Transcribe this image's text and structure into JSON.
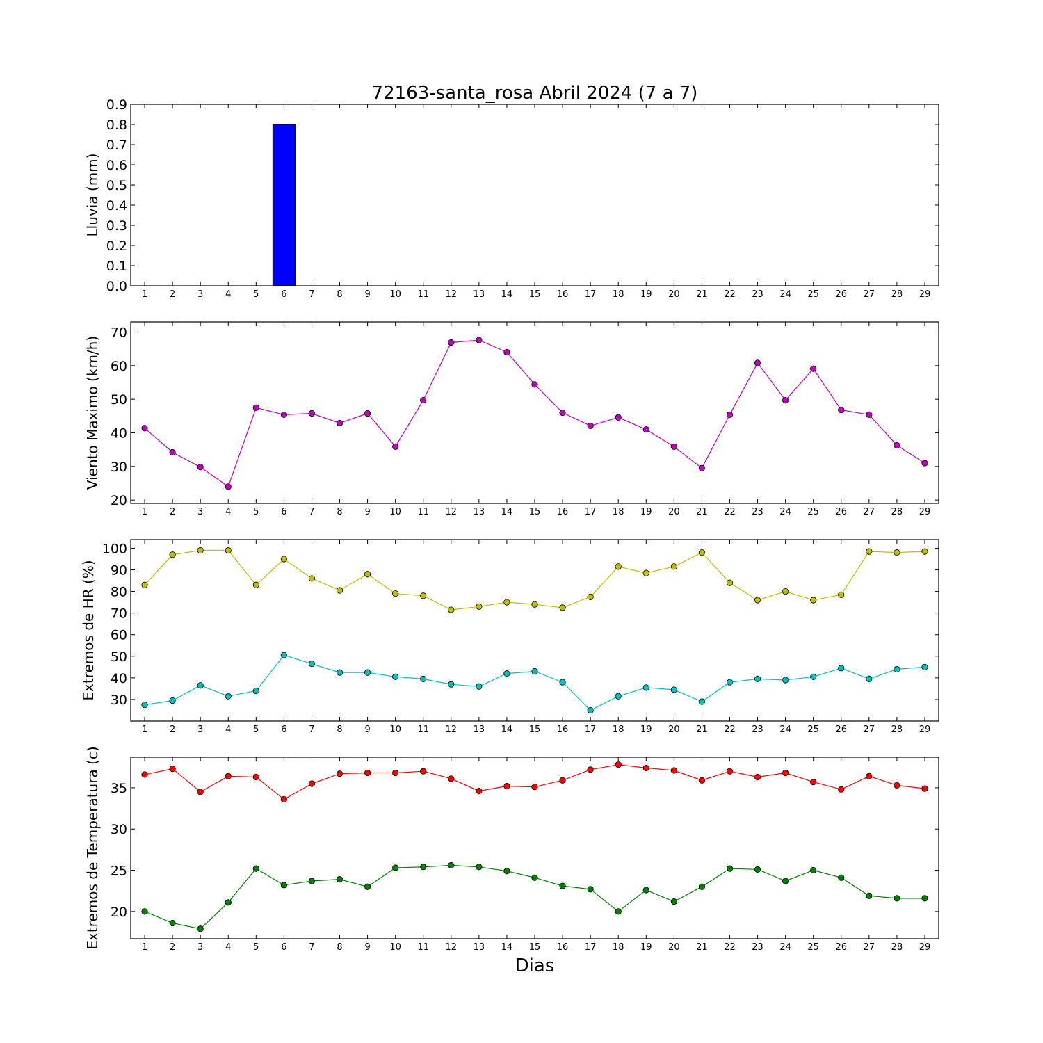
{
  "title": "72163-santa_rosa Abril 2024  (7 a 7)",
  "xlabel": "Dias",
  "chart_data": [
    {
      "type": "bar",
      "ylabel": "Lluvia (mm)",
      "x": [
        1,
        2,
        3,
        4,
        5,
        6,
        7,
        8,
        9,
        10,
        11,
        12,
        13,
        14,
        15,
        16,
        17,
        18,
        19,
        20,
        21,
        22,
        23,
        24,
        25,
        26,
        27,
        28,
        29
      ],
      "ylim": [
        0,
        0.9
      ],
      "yticks": [
        0.0,
        0.1,
        0.2,
        0.3,
        0.4,
        0.5,
        0.6,
        0.7,
        0.8,
        0.9
      ],
      "ytick_decimals": 1,
      "series": [
        {
          "color": "#0000ff",
          "values": [
            0,
            0,
            0,
            0,
            0,
            0.8,
            0,
            0,
            0,
            0,
            0,
            0,
            0,
            0,
            0,
            0,
            0,
            0,
            0,
            0,
            0,
            0,
            0,
            0,
            0,
            0,
            0,
            0,
            0
          ]
        }
      ]
    },
    {
      "type": "line",
      "ylabel": "Viento Maximo (km/h)",
      "x": [
        1,
        2,
        3,
        4,
        5,
        6,
        7,
        8,
        9,
        10,
        11,
        12,
        13,
        14,
        15,
        16,
        17,
        18,
        19,
        20,
        21,
        22,
        23,
        24,
        25,
        26,
        27,
        28,
        29
      ],
      "ylim": [
        19,
        73
      ],
      "yticks": [
        20,
        30,
        40,
        50,
        60,
        70
      ],
      "ytick_decimals": 0,
      "series": [
        {
          "color": "#bf00bf",
          "values": [
            41.4,
            34.2,
            29.8,
            24.0,
            47.5,
            45.4,
            45.8,
            42.9,
            45.8,
            35.9,
            49.7,
            66.9,
            67.6,
            64.0,
            54.4,
            46.0,
            42.1,
            44.6,
            41.0,
            35.9,
            29.5,
            45.4,
            60.8,
            49.7,
            59.1,
            46.8,
            45.4,
            36.3,
            31.0
          ]
        }
      ]
    },
    {
      "type": "line",
      "ylabel": "Extremos de HR (%)",
      "x": [
        1,
        2,
        3,
        4,
        5,
        6,
        7,
        8,
        9,
        10,
        11,
        12,
        13,
        14,
        15,
        16,
        17,
        18,
        19,
        20,
        21,
        22,
        23,
        24,
        25,
        26,
        27,
        28,
        29
      ],
      "ylim": [
        20,
        104
      ],
      "yticks": [
        30,
        40,
        50,
        60,
        70,
        80,
        90,
        100
      ],
      "ytick_decimals": 0,
      "series": [
        {
          "color": "#bfbf00",
          "values": [
            83,
            97,
            99,
            99,
            83,
            95,
            86,
            80.5,
            88,
            79,
            78,
            71.5,
            73,
            75,
            74,
            72.5,
            77.5,
            91.5,
            88.5,
            91.5,
            98,
            84,
            76,
            80,
            76,
            78.5,
            98.5,
            98,
            98.5
          ]
        },
        {
          "color": "#00bfbf",
          "values": [
            27.5,
            29.5,
            36.5,
            31.5,
            34,
            50.5,
            46.5,
            42.5,
            42.5,
            40.5,
            39.5,
            37,
            36,
            42,
            43,
            38,
            25,
            31.5,
            35.5,
            34.5,
            29,
            38,
            39.5,
            39,
            40.5,
            44.5,
            39.5,
            44,
            45
          ]
        }
      ]
    },
    {
      "type": "line",
      "ylabel": "Extremos de Temperatura (c)",
      "x": [
        1,
        2,
        3,
        4,
        5,
        6,
        7,
        8,
        9,
        10,
        11,
        12,
        13,
        14,
        15,
        16,
        17,
        18,
        19,
        20,
        21,
        22,
        23,
        24,
        25,
        26,
        27,
        28,
        29
      ],
      "ylim": [
        16.7,
        38.7
      ],
      "yticks": [
        20,
        25,
        30,
        35
      ],
      "ytick_decimals": 0,
      "series": [
        {
          "color": "#ff0000",
          "values": [
            36.6,
            37.3,
            34.5,
            36.4,
            36.3,
            33.6,
            35.5,
            36.7,
            36.8,
            36.8,
            37.0,
            36.1,
            34.6,
            35.2,
            35.1,
            35.9,
            37.2,
            37.8,
            37.4,
            37.1,
            35.9,
            37.0,
            36.3,
            36.8,
            35.7,
            34.8,
            36.4,
            35.3,
            34.9
          ]
        },
        {
          "color": "#008000",
          "values": [
            20.0,
            18.6,
            17.9,
            21.1,
            25.2,
            23.2,
            23.7,
            23.9,
            23.0,
            25.3,
            25.4,
            25.6,
            25.4,
            24.9,
            24.1,
            23.1,
            22.7,
            20.0,
            22.6,
            21.2,
            23.0,
            25.2,
            25.1,
            23.7,
            25.0,
            24.1,
            21.9,
            21.6,
            21.6
          ]
        }
      ]
    }
  ]
}
